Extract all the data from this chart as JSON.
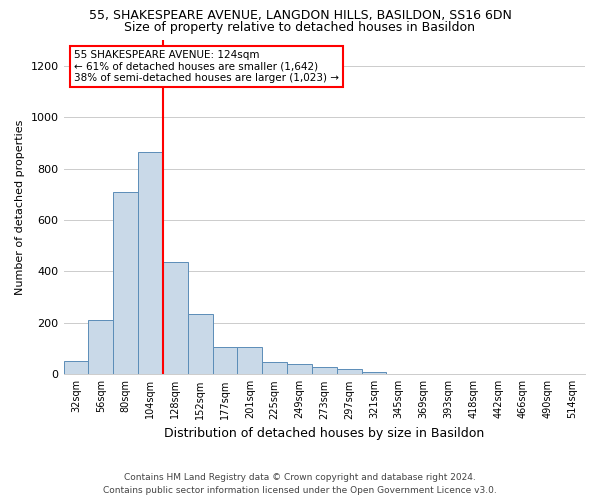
{
  "title": "55, SHAKESPEARE AVENUE, LANGDON HILLS, BASILDON, SS16 6DN",
  "subtitle": "Size of property relative to detached houses in Basildon",
  "xlabel": "Distribution of detached houses by size in Basildon",
  "ylabel": "Number of detached properties",
  "categories": [
    "32sqm",
    "56sqm",
    "80sqm",
    "104sqm",
    "128sqm",
    "152sqm",
    "177sqm",
    "201sqm",
    "225sqm",
    "249sqm",
    "273sqm",
    "297sqm",
    "321sqm",
    "345sqm",
    "369sqm",
    "393sqm",
    "418sqm",
    "442sqm",
    "466sqm",
    "490sqm",
    "514sqm"
  ],
  "bar_values": [
    50,
    210,
    710,
    865,
    435,
    235,
    105,
    105,
    48,
    40,
    30,
    20,
    10,
    0,
    0,
    0,
    0,
    0,
    0,
    0,
    0
  ],
  "bar_color": "#c9d9e8",
  "bar_edge_color": "#5b8db8",
  "vline_color": "red",
  "vline_position": 3.5,
  "ylim": [
    0,
    1300
  ],
  "yticks": [
    0,
    200,
    400,
    600,
    800,
    1000,
    1200
  ],
  "annotation_text": "55 SHAKESPEARE AVENUE: 124sqm\n← 61% of detached houses are smaller (1,642)\n38% of semi-detached houses are larger (1,023) →",
  "annotation_box_color": "white",
  "annotation_box_edge_color": "red",
  "footer_line1": "Contains HM Land Registry data © Crown copyright and database right 2024.",
  "footer_line2": "Contains public sector information licensed under the Open Government Licence v3.0.",
  "title_fontsize": 9,
  "subtitle_fontsize": 9,
  "ylabel_fontsize": 8,
  "xlabel_fontsize": 9,
  "tick_fontsize": 7,
  "ytick_fontsize": 8,
  "annotation_fontsize": 7.5,
  "footer_fontsize": 6.5,
  "bar_width": 1.0,
  "grid_color": "#cccccc",
  "background_color": "white"
}
